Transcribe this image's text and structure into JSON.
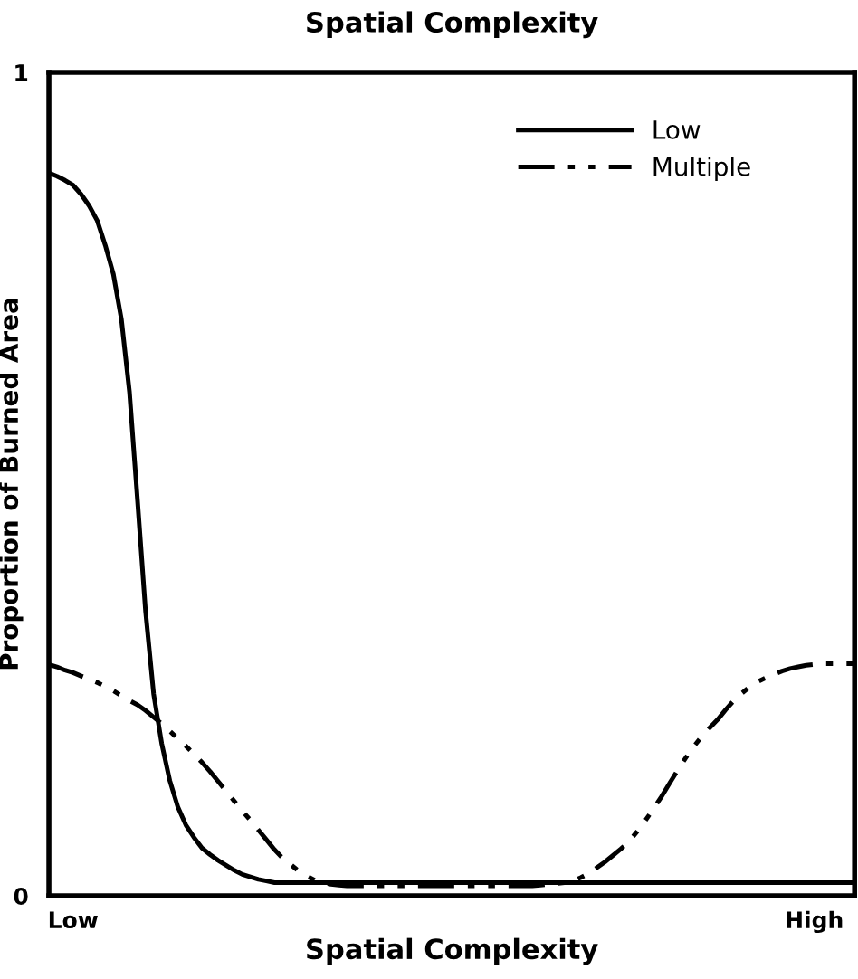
{
  "chart_data": {
    "type": "line",
    "title": "Spatial Complexity",
    "xlabel": "Spatial Complexity",
    "ylabel": "Proportion of Burned Area",
    "categories": [
      null,
      null,
      null,
      "Low",
      null,
      null,
      null,
      null,
      null,
      null,
      null,
      null,
      null,
      null,
      null,
      null,
      null,
      null,
      null,
      null,
      null,
      null,
      null,
      null,
      null,
      null,
      null,
      null,
      null,
      null,
      null,
      null,
      null,
      null,
      null,
      null,
      null,
      null,
      null,
      null,
      null,
      null,
      null,
      null,
      null,
      null,
      null,
      null,
      null,
      null,
      null,
      null,
      null,
      null,
      null,
      null,
      null,
      null,
      null,
      null,
      null,
      null,
      null,
      null,
      null,
      null,
      null,
      null,
      null,
      null,
      null,
      null,
      null,
      null,
      null,
      null,
      null,
      null,
      null,
      null,
      null,
      null,
      null,
      null,
      null,
      null,
      null,
      null,
      null,
      null,
      null,
      null,
      null,
      null,
      null,
      "High",
      null,
      null,
      null,
      null,
      null
    ],
    "ylim": [
      0,
      1
    ],
    "yticks": [
      0,
      1
    ],
    "legend": "top right",
    "marker": "none",
    "series": [
      {
        "name": "Low",
        "color": "#000000",
        "line_style": "solid",
        "values": [
          0.878,
          0.874,
          0.869,
          0.863,
          0.852,
          0.838,
          0.82,
          0.79,
          0.755,
          0.7,
          0.612,
          0.48,
          0.345,
          0.245,
          0.185,
          0.14,
          0.108,
          0.086,
          0.071,
          0.058,
          0.05,
          0.043,
          0.037,
          0.031,
          0.026,
          0.023,
          0.02,
          0.018,
          0.016,
          0.016,
          0.016,
          0.016,
          0.016,
          0.016,
          0.016,
          0.016,
          0.016,
          0.016,
          0.016,
          0.016,
          0.016,
          0.016,
          0.016,
          0.016,
          0.016,
          0.016,
          0.016,
          0.016,
          0.016,
          0.016,
          0.016,
          0.016,
          0.016,
          0.016,
          0.016,
          0.016,
          0.016,
          0.016,
          0.016,
          0.016,
          0.016,
          0.016,
          0.016,
          0.016,
          0.016,
          0.016,
          0.016,
          0.016,
          0.016,
          0.016,
          0.016,
          0.016,
          0.016,
          0.016,
          0.016,
          0.016,
          0.016,
          0.016,
          0.016,
          0.016,
          0.016,
          0.016,
          0.016,
          0.016,
          0.016,
          0.016,
          0.016,
          0.016,
          0.016,
          0.016,
          0.016,
          0.016,
          0.016,
          0.016,
          0.016,
          0.016,
          0.016,
          0.016,
          0.016,
          0.016,
          0.016
        ]
      },
      {
        "name": "Multiple",
        "color": "#000000",
        "line_style": "dashed",
        "values": [
          0.281,
          0.278,
          0.274,
          0.271,
          0.267,
          0.263,
          0.259,
          0.254,
          0.249,
          0.243,
          0.237,
          0.232,
          0.225,
          0.217,
          0.209,
          0.2,
          0.191,
          0.182,
          0.172,
          0.162,
          0.151,
          0.139,
          0.127,
          0.115,
          0.103,
          0.092,
          0.08,
          0.068,
          0.056,
          0.046,
          0.038,
          0.03,
          0.024,
          0.019,
          0.016,
          0.014,
          0.013,
          0.012,
          0.012,
          0.012,
          0.012,
          0.012,
          0.012,
          0.012,
          0.012,
          0.012,
          0.012,
          0.012,
          0.012,
          0.012,
          0.012,
          0.012,
          0.012,
          0.012,
          0.012,
          0.012,
          0.012,
          0.012,
          0.012,
          0.012,
          0.012,
          0.013,
          0.014,
          0.015,
          0.016,
          0.018,
          0.022,
          0.027,
          0.034,
          0.041,
          0.049,
          0.057,
          0.066,
          0.078,
          0.091,
          0.105,
          0.12,
          0.136,
          0.152,
          0.167,
          0.181,
          0.193,
          0.204,
          0.214,
          0.226,
          0.237,
          0.246,
          0.254,
          0.26,
          0.265,
          0.269,
          0.273,
          0.276,
          0.278,
          0.28,
          0.281,
          0.282,
          0.282,
          0.282,
          0.282,
          0.282
        ]
      }
    ]
  }
}
